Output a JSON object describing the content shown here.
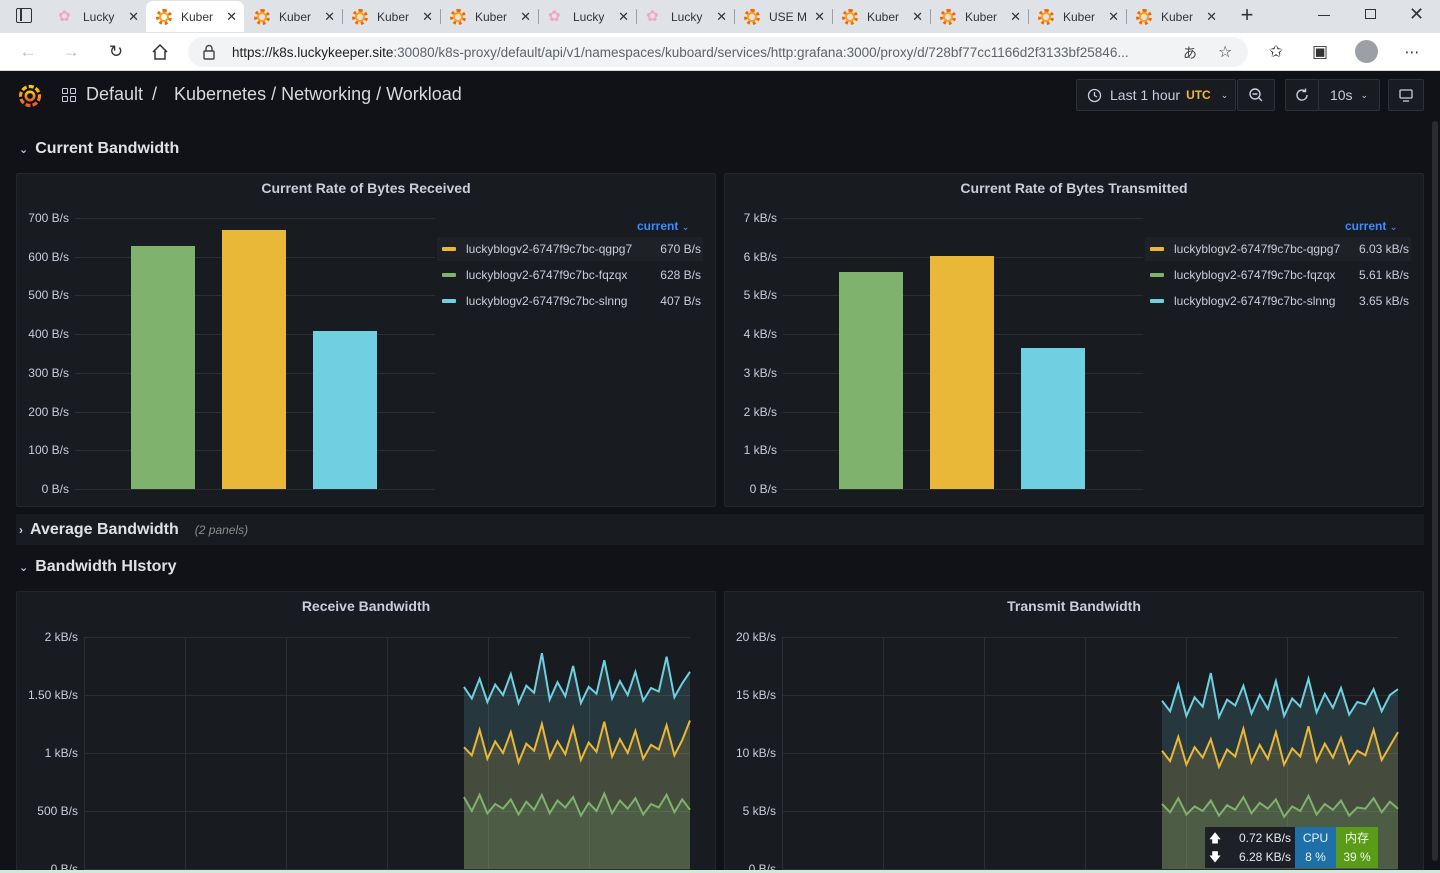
{
  "browser": {
    "tabs": [
      {
        "title": "Lucky",
        "icon": "blossom-icon"
      },
      {
        "title": "Kuber",
        "icon": "grafana-icon",
        "active": true
      },
      {
        "title": "Kuber",
        "icon": "grafana-icon"
      },
      {
        "title": "Kuber",
        "icon": "grafana-icon"
      },
      {
        "title": "Kuber",
        "icon": "grafana-icon"
      },
      {
        "title": "Lucky",
        "icon": "blossom-icon"
      },
      {
        "title": "Lucky",
        "icon": "blossom-icon"
      },
      {
        "title": "USE M",
        "icon": "grafana-icon"
      },
      {
        "title": "Kuber",
        "icon": "grafana-icon"
      },
      {
        "title": "Kuber",
        "icon": "grafana-icon"
      },
      {
        "title": "Kuber",
        "icon": "grafana-icon"
      },
      {
        "title": "Kuber",
        "icon": "grafana-icon"
      }
    ],
    "url_host": "https://k8s.luckykeeper.site",
    "url_rest": ":30080/k8s-proxy/default/api/v1/namespaces/kuboard/services/http:grafana:3000/proxy/d/728bf77cc1166d2f3133bf25846..."
  },
  "header": {
    "folder": "Default",
    "separator": "/",
    "dashboard": "Kubernetes / Networking / Workload",
    "time_range": "Last 1 hour",
    "timezone": "UTC",
    "refresh": "10s"
  },
  "rows": {
    "current": "Current Bandwidth",
    "average": "Average Bandwidth",
    "average_note": "(2 panels)",
    "history": "Bandwidth HIstory"
  },
  "panels": {
    "received": {
      "title": "Current Rate of Bytes Received",
      "legend_header": "current",
      "yticks": [
        "700 B/s",
        "600 B/s",
        "500 B/s",
        "400 B/s",
        "300 B/s",
        "200 B/s",
        "100 B/s",
        "0 B/s"
      ],
      "legend": [
        {
          "name": "luckyblogv2-6747f9c7bc-qgpg7",
          "value": "670 B/s",
          "color": "#eab839"
        },
        {
          "name": "luckyblogv2-6747f9c7bc-fqzqx",
          "value": "628 B/s",
          "color": "#7eb26d"
        },
        {
          "name": "luckyblogv2-6747f9c7bc-slnng",
          "value": "407 B/s",
          "color": "#6ed0e0"
        }
      ]
    },
    "transmitted": {
      "title": "Current Rate of Bytes Transmitted",
      "legend_header": "current",
      "yticks": [
        "7 kB/s",
        "6 kB/s",
        "5 kB/s",
        "4 kB/s",
        "3 kB/s",
        "2 kB/s",
        "1 kB/s",
        "0 B/s"
      ],
      "legend": [
        {
          "name": "luckyblogv2-6747f9c7bc-qgpg7",
          "value": "6.03 kB/s",
          "color": "#eab839"
        },
        {
          "name": "luckyblogv2-6747f9c7bc-fqzqx",
          "value": "5.61 kB/s",
          "color": "#7eb26d"
        },
        {
          "name": "luckyblogv2-6747f9c7bc-slnng",
          "value": "3.65 kB/s",
          "color": "#6ed0e0"
        }
      ]
    },
    "receive_hist": {
      "title": "Receive Bandwidth",
      "yticks": [
        "2 kB/s",
        "1.50 kB/s",
        "1 kB/s",
        "500 B/s",
        "0 B/s"
      ]
    },
    "transmit_hist": {
      "title": "Transmit Bandwidth",
      "yticks": [
        "20 kB/s",
        "15 kB/s",
        "10 kB/s",
        "5 kB/s",
        "0 B/s"
      ]
    }
  },
  "chart_data": [
    {
      "type": "bar",
      "title": "Current Rate of Bytes Received",
      "categories": [
        "luckyblogv2-6747f9c7bc-fqzqx",
        "luckyblogv2-6747f9c7bc-qgpg7",
        "luckyblogv2-6747f9c7bc-slnng"
      ],
      "values": [
        628,
        670,
        407
      ],
      "colors": [
        "#7eb26d",
        "#eab839",
        "#6ed0e0"
      ],
      "ylim": [
        0,
        700
      ]
    },
    {
      "type": "bar",
      "title": "Current Rate of Bytes Transmitted",
      "categories": [
        "luckyblogv2-6747f9c7bc-fqzqx",
        "luckyblogv2-6747f9c7bc-qgpg7",
        "luckyblogv2-6747f9c7bc-slnng"
      ],
      "values": [
        5610,
        6030,
        3650
      ],
      "colors": [
        "#7eb26d",
        "#eab839",
        "#6ed0e0"
      ],
      "ylim": [
        0,
        7000
      ]
    },
    {
      "type": "area",
      "title": "Receive Bandwidth",
      "ylim": [
        0,
        2000
      ],
      "series": [
        {
          "name": "luckyblogv2-6747f9c7bc-fqzqx",
          "color": "#7eb26d",
          "values": [
            620,
            500,
            640,
            480,
            560,
            520,
            600,
            470,
            580,
            510,
            640,
            480,
            590,
            530,
            620,
            460,
            570,
            500,
            650,
            480,
            590,
            520,
            610,
            470,
            560,
            530,
            640,
            490,
            600,
            510
          ]
        },
        {
          "name": "luckyblogv2-6747f9c7bc-qgpg7",
          "color": "#eab839",
          "values": [
            1050,
            980,
            1200,
            950,
            1100,
            1000,
            1180,
            920,
            1080,
            1020,
            1250,
            960,
            1100,
            990,
            1220,
            940,
            1090,
            1010,
            1270,
            970,
            1120,
            1000,
            1190,
            950,
            1070,
            1030,
            1240,
            980,
            1110,
            1280
          ]
        },
        {
          "name": "luckyblogv2-6747f9c7bc-slnng",
          "color": "#6ed0e0",
          "values": [
            1570,
            1470,
            1640,
            1440,
            1590,
            1500,
            1680,
            1430,
            1580,
            1520,
            1860,
            1460,
            1610,
            1490,
            1750,
            1430,
            1570,
            1510,
            1800,
            1470,
            1620,
            1500,
            1700,
            1450,
            1560,
            1530,
            1830,
            1480,
            1600,
            1700
          ]
        }
      ]
    },
    {
      "type": "area",
      "title": "Transmit Bandwidth",
      "ylim": [
        0,
        20000
      ],
      "series": [
        {
          "name": "luckyblogv2-6747f9c7bc-fqzqx",
          "color": "#7eb26d",
          "values": [
            5600,
            4900,
            6100,
            4700,
            5400,
            5000,
            5900,
            4600,
            5500,
            5100,
            6200,
            4800,
            5700,
            5200,
            6000,
            4500,
            5400,
            5000,
            6300,
            4700,
            5600,
            5100,
            5900,
            4600,
            5300,
            5200,
            6100,
            4900,
            5800,
            5200
          ]
        },
        {
          "name": "luckyblogv2-6747f9c7bc-qgpg7",
          "color": "#eab839",
          "values": [
            10200,
            9300,
            11400,
            9000,
            10500,
            9600,
            11200,
            8800,
            10300,
            9700,
            12100,
            9200,
            10700,
            9500,
            11800,
            9000,
            10400,
            9700,
            12300,
            9300,
            10800,
            9600,
            11300,
            9100,
            10200,
            9800,
            12000,
            9400,
            10600,
            11800
          ]
        },
        {
          "name": "luckyblogv2-6747f9c7bc-slnng",
          "color": "#6ed0e0",
          "values": [
            14500,
            13600,
            15900,
            13200,
            14800,
            14000,
            16900,
            13100,
            14600,
            14100,
            15800,
            13400,
            15000,
            13800,
            16200,
            13200,
            14700,
            14000,
            16400,
            13500,
            15100,
            13900,
            15600,
            13300,
            14400,
            14200,
            15500,
            13600,
            15000,
            15500
          ]
        }
      ]
    }
  ],
  "netwidget": {
    "up": "0.72 KB/s",
    "down": "6.28 KB/s",
    "cpu_label": "CPU",
    "cpu_val": "8 %",
    "mem_label": "内存",
    "mem_val": "39 %"
  },
  "colors": {
    "bg": "#111217",
    "panel": "#181b1f",
    "accent": "#3d8bff",
    "green": "#7eb26d",
    "yellow": "#eab839",
    "cyan": "#6ed0e0"
  }
}
